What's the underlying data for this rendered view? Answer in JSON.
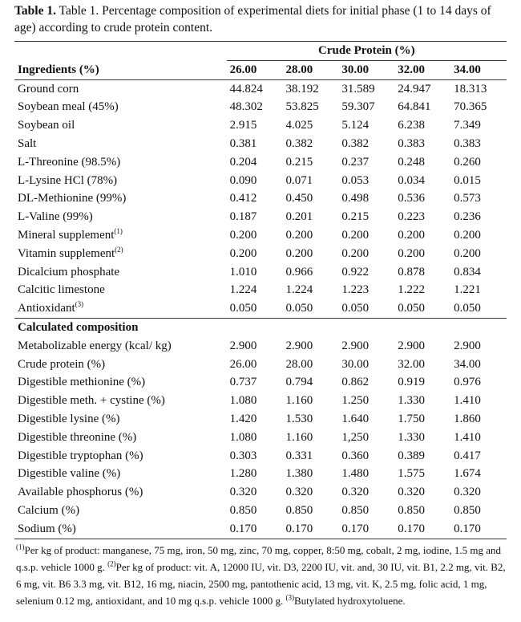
{
  "caption": {
    "label": "Table 1.",
    "text": "Table 1. Percentage composition of experimental diets for initial phase (1 to 14 days of age) according to crude protein content."
  },
  "header": {
    "group": "Crude Protein (%)",
    "first": "Ingredients (%)",
    "levels": [
      "26.00",
      "28.00",
      "30.00",
      "32.00",
      "34.00"
    ]
  },
  "ingredients": [
    {
      "name": "Ground corn",
      "sup": "",
      "values": [
        "44.824",
        "38.192",
        "31.589",
        "24.947",
        "18.313"
      ]
    },
    {
      "name": "Soybean meal (45%)",
      "sup": "",
      "values": [
        "48.302",
        "53.825",
        "59.307",
        "64.841",
        "70.365"
      ]
    },
    {
      "name": "Soybean oil",
      "sup": "",
      "values": [
        "2.915",
        "4.025",
        "5.124",
        "6.238",
        "7.349"
      ]
    },
    {
      "name": "Salt",
      "sup": "",
      "values": [
        "0.381",
        "0.382",
        "0.382",
        "0.383",
        "0.383"
      ]
    },
    {
      "name": "L-Threonine (98.5%)",
      "sup": "",
      "values": [
        "0.204",
        "0.215",
        "0.237",
        "0.248",
        "0.260"
      ]
    },
    {
      "name": "L-Lysine HCl (78%)",
      "sup": "",
      "values": [
        "0.090",
        "0.071",
        "0.053",
        "0.034",
        "0.015"
      ]
    },
    {
      "name": "DL-Methionine (99%)",
      "sup": "",
      "values": [
        "0.412",
        "0.450",
        "0.498",
        "0.536",
        "0.573"
      ]
    },
    {
      "name": "L-Valine (99%)",
      "sup": "",
      "values": [
        "0.187",
        "0.201",
        "0.215",
        "0.223",
        "0.236"
      ]
    },
    {
      "name": "Mineral supplement",
      "sup": "(1)",
      "values": [
        "0.200",
        "0.200",
        "0.200",
        "0.200",
        "0.200"
      ]
    },
    {
      "name": "Vitamin supplement",
      "sup": "(2)",
      "values": [
        "0.200",
        "0.200",
        "0.200",
        "0.200",
        "0.200"
      ]
    },
    {
      "name": "Dicalcium phosphate",
      "sup": "",
      "values": [
        "1.010",
        "0.966",
        "0.922",
        "0.878",
        "0.834"
      ]
    },
    {
      "name": "Calcitic limestone",
      "sup": "",
      "values": [
        "1.224",
        "1.224",
        "1.223",
        "1.222",
        "1.221"
      ]
    },
    {
      "name": "Antioxidant",
      "sup": "(3)",
      "values": [
        "0.050",
        "0.050",
        "0.050",
        "0.050",
        "0.050"
      ]
    }
  ],
  "section": "Calculated composition",
  "composition": [
    {
      "name": "Metabolizable energy (kcal/ kg)",
      "values": [
        "2.900",
        "2.900",
        "2.900",
        "2.900",
        "2.900"
      ]
    },
    {
      "name": "Crude protein (%)",
      "values": [
        "26.00",
        "28.00",
        "30.00",
        "32.00",
        "34.00"
      ]
    },
    {
      "name": "Digestible methionine (%)",
      "values": [
        "0.737",
        "0.794",
        "0.862",
        "0.919",
        "0.976"
      ]
    },
    {
      "name": "Digestible meth. + cystine (%)",
      "values": [
        "1.080",
        "1.160",
        "1.250",
        "1.330",
        "1.410"
      ]
    },
    {
      "name": "Digestible lysine (%)",
      "values": [
        "1.420",
        "1.530",
        "1.640",
        "1.750",
        "1.860"
      ]
    },
    {
      "name": "Digestible threonine (%)",
      "values": [
        "1.080",
        "1.160",
        "1,250",
        "1.330",
        "1.410"
      ]
    },
    {
      "name": "Digestible tryptophan (%)",
      "values": [
        "0.303",
        "0.331",
        "0.360",
        "0.389",
        "0.417"
      ]
    },
    {
      "name": "Digestible valine (%)",
      "values": [
        "1.280",
        "1.380",
        "1.480",
        "1.575",
        "1.674"
      ]
    },
    {
      "name": "Available phosphorus (%)",
      "values": [
        "0.320",
        "0.320",
        "0.320",
        "0.320",
        "0.320"
      ]
    },
    {
      "name": "Calcium (%)",
      "values": [
        "0.850",
        "0.850",
        "0.850",
        "0.850",
        "0.850"
      ]
    },
    {
      "name": "Sodium (%)",
      "values": [
        "0.170",
        "0.170",
        "0.170",
        "0.170",
        "0.170"
      ]
    }
  ],
  "footnotes": [
    {
      "sup": "(1)",
      "text": "Per kg of product: manganese, 75 mg, iron, 50 mg, zinc, 70 mg, copper, 8:50 mg, cobalt, 2 mg, iodine, 1.5 mg and q.s.p. vehicle 1000 g. "
    },
    {
      "sup": "(2)",
      "text": "Per kg of product: vit. A, 12000 IU, vit. D3, 2200 IU, vit. and, 30 IU, vit. B1, 2.2 mg, vit. B2, 6 mg, vit. B6 3.3 mg, vit. B12, 16 mg, niacin, 2500 mg, pantothenic acid, 13 mg, vit. K, 2.5 mg, folic acid, 1 mg, selenium 0.12 mg, antioxidant, and 10 mg q.s.p. vehicle 1000 g. "
    },
    {
      "sup": "(3)",
      "text": "Butylated hydroxytoluene."
    }
  ]
}
